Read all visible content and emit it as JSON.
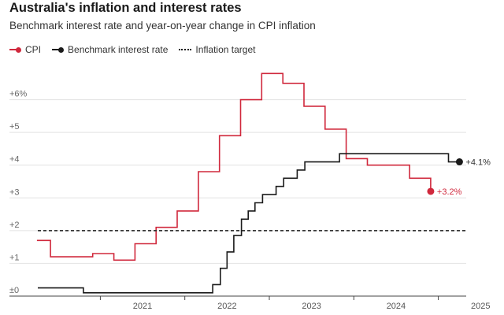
{
  "chart_data": {
    "type": "line",
    "title": "Australia's inflation and interest rates",
    "subtitle": "Benchmark interest rate and year-on-year change in CPI inflation",
    "xlabel": "",
    "ylabel": "",
    "x_ticks": [
      "2021",
      "2022",
      "2023",
      "2024",
      "2025"
    ],
    "y_ticks": [
      {
        "value": 0,
        "label": "±0"
      },
      {
        "value": 1,
        "label": "+1"
      },
      {
        "value": 2,
        "label": "+2"
      },
      {
        "value": 3,
        "label": "+3"
      },
      {
        "value": 4,
        "label": "+4"
      },
      {
        "value": 5,
        "label": "+5"
      },
      {
        "value": 6,
        "label": "+6%"
      }
    ],
    "ylim": [
      0,
      7
    ],
    "xlim": [
      2020.26,
      2025.33
    ],
    "grid": true,
    "legend_position": "top-left",
    "series": [
      {
        "name": "CPI",
        "color": "#d0283c",
        "style": "step",
        "end_label": "+3.2%",
        "points": [
          {
            "x": 2020.25,
            "y": 1.7
          },
          {
            "x": 2020.41,
            "y": 1.2
          },
          {
            "x": 2020.66,
            "y": 1.2
          },
          {
            "x": 2020.91,
            "y": 1.3
          },
          {
            "x": 2021.16,
            "y": 1.1
          },
          {
            "x": 2021.41,
            "y": 1.6
          },
          {
            "x": 2021.66,
            "y": 2.1
          },
          {
            "x": 2021.91,
            "y": 2.6
          },
          {
            "x": 2022.16,
            "y": 3.8
          },
          {
            "x": 2022.41,
            "y": 4.9
          },
          {
            "x": 2022.66,
            "y": 6.0
          },
          {
            "x": 2022.91,
            "y": 6.8
          },
          {
            "x": 2023.16,
            "y": 6.5
          },
          {
            "x": 2023.41,
            "y": 5.8
          },
          {
            "x": 2023.66,
            "y": 5.1
          },
          {
            "x": 2023.91,
            "y": 4.2
          },
          {
            "x": 2024.16,
            "y": 4.0
          },
          {
            "x": 2024.41,
            "y": 4.0
          },
          {
            "x": 2024.66,
            "y": 3.6
          },
          {
            "x": 2024.91,
            "y": 3.2
          }
        ]
      },
      {
        "name": "Benchmark interest rate",
        "color": "#1a1a1a",
        "style": "step",
        "end_label": "+4.1%",
        "points": [
          {
            "x": 2020.26,
            "y": 0.25
          },
          {
            "x": 2020.8,
            "y": 0.1
          },
          {
            "x": 2022.33,
            "y": 0.35
          },
          {
            "x": 2022.42,
            "y": 0.85
          },
          {
            "x": 2022.5,
            "y": 1.35
          },
          {
            "x": 2022.58,
            "y": 1.85
          },
          {
            "x": 2022.67,
            "y": 2.35
          },
          {
            "x": 2022.75,
            "y": 2.6
          },
          {
            "x": 2022.83,
            "y": 2.85
          },
          {
            "x": 2022.92,
            "y": 3.1
          },
          {
            "x": 2023.08,
            "y": 3.35
          },
          {
            "x": 2023.17,
            "y": 3.6
          },
          {
            "x": 2023.33,
            "y": 3.85
          },
          {
            "x": 2023.42,
            "y": 4.1
          },
          {
            "x": 2023.83,
            "y": 4.35
          },
          {
            "x": 2025.12,
            "y": 4.1
          },
          {
            "x": 2025.25,
            "y": 4.1
          }
        ]
      },
      {
        "name": "Inflation target",
        "color": "#1a1a1a",
        "style": "dashed",
        "points": [
          {
            "x": 2020.26,
            "y": 2.0
          },
          {
            "x": 2025.33,
            "y": 2.0
          }
        ]
      }
    ]
  }
}
